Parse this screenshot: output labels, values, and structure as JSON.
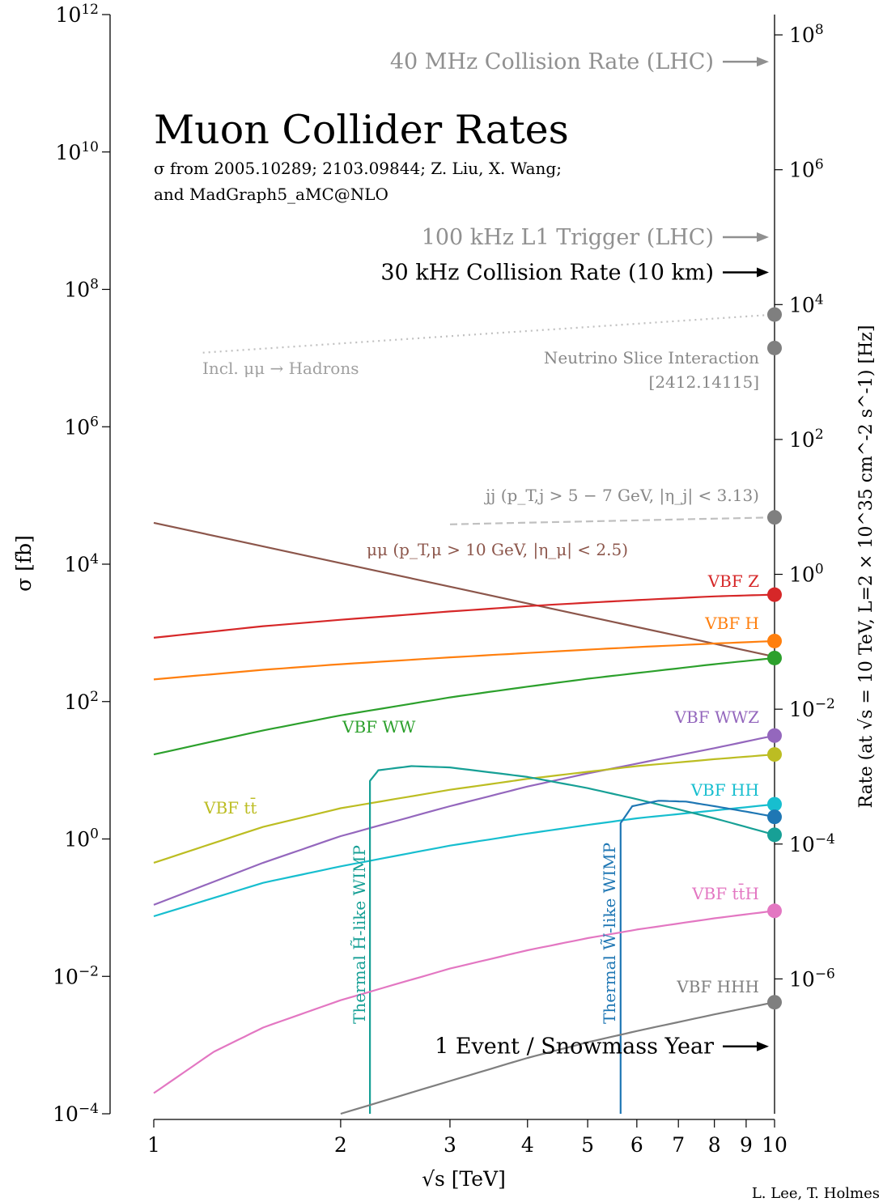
{
  "chart_data": {
    "type": "line",
    "title": "Muon Collider Rates",
    "subtitle_lines": [
      "σ from 2005.10289; 2103.09844; Z. Liu, X. Wang;",
      "and MadGraph5_aMC@NLO"
    ],
    "credit": "L. Lee, T. Holmes",
    "xlabel": "√s [TeV]",
    "ylabel": "σ [fb]",
    "ylabel_right": "Rate (at √s = 10 TeV, L=2 × 10^35 cm^-2 s^-1) [Hz]",
    "x_scale": "log",
    "y_scale": "log",
    "xlim": [
      1,
      10
    ],
    "ylim": [
      0.0001,
      1000000000000
    ],
    "right_ylim": [
      1e-08,
      200000000
    ],
    "x_ticks": [
      {
        "value": 1,
        "label": "1"
      },
      {
        "value": 2,
        "label": "2"
      },
      {
        "value": 3,
        "label": "3"
      },
      {
        "value": 4,
        "label": "4"
      },
      {
        "value": 5,
        "label": "5"
      },
      {
        "value": 6,
        "label": "6"
      },
      {
        "value": 7,
        "label": "7"
      },
      {
        "value": 8,
        "label": "8"
      },
      {
        "value": 9,
        "label": "9"
      },
      {
        "value": 10,
        "label": "10"
      }
    ],
    "y_ticks": [
      {
        "exp": -4,
        "base": "10",
        "sup": "−4"
      },
      {
        "exp": -2,
        "base": "10",
        "sup": "−2"
      },
      {
        "exp": 0,
        "base": "10",
        "sup": "0"
      },
      {
        "exp": 2,
        "base": "10",
        "sup": "2"
      },
      {
        "exp": 4,
        "base": "10",
        "sup": "4"
      },
      {
        "exp": 6,
        "base": "10",
        "sup": "6"
      },
      {
        "exp": 8,
        "base": "10",
        "sup": "8"
      },
      {
        "exp": 10,
        "base": "10",
        "sup": "10"
      },
      {
        "exp": 12,
        "base": "10",
        "sup": "12"
      }
    ],
    "right_y_ticks": [
      {
        "exp": -6,
        "base": "10",
        "sup": "−6"
      },
      {
        "exp": -4,
        "base": "10",
        "sup": "−4"
      },
      {
        "exp": -2,
        "base": "10",
        "sup": "−2"
      },
      {
        "exp": 0,
        "base": "10",
        "sup": "0"
      },
      {
        "exp": 2,
        "base": "10",
        "sup": "2"
      },
      {
        "exp": 4,
        "base": "10",
        "sup": "4"
      },
      {
        "exp": 6,
        "base": "10",
        "sup": "6"
      },
      {
        "exp": 8,
        "base": "10",
        "sup": "8"
      }
    ],
    "series": [
      {
        "name": "Incl. μμ → Hadrons",
        "color": "#c0c0c0",
        "style": "dotted",
        "x": [
          1.2,
          10
        ],
        "y": [
          12000000,
          43000000
        ]
      },
      {
        "name": "jj (p_T,j > 5 − 7 GeV, |η_j| < 3.13)",
        "color": "#c0c0c0",
        "style": "dashed",
        "x": [
          3,
          10
        ],
        "y": [
          38000,
          48000
        ]
      },
      {
        "name": "μμ (p_T,μ > 10 GeV, |η_μ| < 2.5)",
        "color": "#8c564b",
        "style": "solid",
        "x": [
          1,
          10
        ],
        "y": [
          40000,
          450
        ]
      },
      {
        "name": "VBF Z",
        "color": "#d62728",
        "style": "solid",
        "x": [
          1,
          1.5,
          2,
          3,
          4,
          5,
          6,
          8,
          10
        ],
        "y": [
          850,
          1250,
          1550,
          2050,
          2450,
          2750,
          3000,
          3400,
          3600
        ]
      },
      {
        "name": "VBF H",
        "color": "#ff7f0e",
        "style": "solid",
        "x": [
          1,
          1.5,
          2,
          3,
          4,
          5,
          6,
          8,
          10
        ],
        "y": [
          210,
          290,
          350,
          440,
          510,
          570,
          620,
          700,
          760
        ]
      },
      {
        "name": "VBF WW",
        "color": "#2ca02c",
        "style": "solid",
        "x": [
          1,
          1.5,
          2,
          3,
          4,
          5,
          6,
          8,
          10
        ],
        "y": [
          17,
          38,
          63,
          115,
          165,
          215,
          260,
          350,
          430
        ]
      },
      {
        "name": "VBF WWZ",
        "color": "#9467bd",
        "style": "solid",
        "x": [
          1,
          1.5,
          2,
          3,
          4,
          5,
          6,
          8,
          10
        ],
        "y": [
          0.11,
          0.45,
          1.1,
          3,
          5.8,
          9,
          12.5,
          21,
          32
        ]
      },
      {
        "name": "VBF tt̄",
        "color": "#bcbd22",
        "style": "solid",
        "x": [
          1,
          1.5,
          2,
          3,
          4,
          5,
          6,
          8,
          10
        ],
        "y": [
          0.45,
          1.5,
          2.8,
          5.2,
          7.5,
          9.5,
          11.5,
          14.5,
          17
        ]
      },
      {
        "name": "VBF HH",
        "color": "#17becf",
        "style": "solid",
        "x": [
          1,
          1.5,
          2,
          3,
          4,
          5,
          6,
          8,
          10
        ],
        "y": [
          0.075,
          0.23,
          0.4,
          0.8,
          1.2,
          1.6,
          2,
          2.6,
          3.2
        ]
      },
      {
        "name": "Thermal H̃-like WIMP",
        "color": "#17a096",
        "style": "solid",
        "x": [
          2.23,
          2.23,
          2.3,
          2.6,
          3,
          4,
          5,
          6,
          8,
          10
        ],
        "y": [
          0.0001,
          7,
          10,
          11.5,
          11,
          8,
          5.5,
          3.8,
          2,
          1.15
        ]
      },
      {
        "name": "Thermal W̃-like WIMP",
        "color": "#1f77b4",
        "style": "solid",
        "x": [
          5.65,
          5.65,
          5.9,
          6.5,
          7.2,
          8,
          9,
          10
        ],
        "y": [
          0.0001,
          1.7,
          3,
          3.6,
          3.5,
          3,
          2.5,
          2.1
        ]
      },
      {
        "name": "VBF tt̄H",
        "color": "#e377c2",
        "style": "solid",
        "x": [
          1,
          1.25,
          1.5,
          2,
          3,
          4,
          5,
          6,
          8,
          10
        ],
        "y": [
          0.0002,
          0.0008,
          0.0018,
          0.0045,
          0.013,
          0.024,
          0.036,
          0.048,
          0.07,
          0.09
        ]
      },
      {
        "name": "VBF HHH",
        "color": "#7f7f7f",
        "style": "solid",
        "x": [
          2,
          3,
          4,
          5,
          6,
          8,
          10
        ],
        "y": [
          0.0001,
          0.0003,
          0.00065,
          0.0011,
          0.0016,
          0.0028,
          0.0042
        ]
      }
    ],
    "series_labels": [
      {
        "text": "Incl. μμ → Hadrons",
        "color": "#a0a0a0"
      },
      {
        "text": "jj (p_T,j > 5 − 7 GeV, |η_j| < 3.13)",
        "color": "#888888"
      },
      {
        "text": "μμ (p_T,μ > 10 GeV, |η_μ| < 2.5)",
        "color": "#8c564b"
      },
      {
        "text": "VBF Z",
        "color": "#d62728"
      },
      {
        "text": "VBF H",
        "color": "#ff7f0e"
      },
      {
        "text": "VBF WW",
        "color": "#2ca02c"
      },
      {
        "text": "VBF WWZ",
        "color": "#9467bd"
      },
      {
        "text": "VBF tt̄",
        "color": "#bcbd22"
      },
      {
        "text": "VBF HH",
        "color": "#17becf"
      },
      {
        "text": "VBF tt̄H",
        "color": "#e377c2"
      },
      {
        "text": "VBF HHH",
        "color": "#7f7f7f"
      },
      {
        "text": "Thermal H̃-like WIMP",
        "color": "#17a096"
      },
      {
        "text": "Thermal W̃-like WIMP",
        "color": "#1f77b4"
      }
    ],
    "markers": [
      {
        "color": "#7f7f7f",
        "y": 43000000
      },
      {
        "color": "#7f7f7f",
        "y": 14000000
      },
      {
        "color": "#7f7f7f",
        "y": 48000
      },
      {
        "color": "#d62728",
        "y": 3600
      },
      {
        "color": "#ff7f0e",
        "y": 760
      },
      {
        "color": "#2ca02c",
        "y": 430
      },
      {
        "color": "#9467bd",
        "y": 32
      },
      {
        "color": "#bcbd22",
        "y": 17
      },
      {
        "color": "#17becf",
        "y": 3.2
      },
      {
        "color": "#1f77b4",
        "y": 2.1
      },
      {
        "color": "#17a096",
        "y": 1.15
      },
      {
        "color": "#e377c2",
        "y": 0.09
      },
      {
        "color": "#7f7f7f",
        "y": 0.0042
      }
    ],
    "annotations": [
      {
        "text": "40 MHz Collision Rate (LHC)",
        "color": "#909090",
        "rate_hz": 40000000
      },
      {
        "text": "100 kHz L1 Trigger (LHC)",
        "color": "#909090",
        "rate_hz": 100000
      },
      {
        "text": "30 kHz Collision Rate (10 km)",
        "color": "#000000",
        "rate_hz": 30000
      },
      {
        "text": "1 Event / Snowmass Year",
        "color": "#000000",
        "rate_hz": 1e-07
      }
    ],
    "neutrino_note": {
      "lines": [
        "Neutrino Slice Interaction",
        "[2412.14115]"
      ],
      "color": "#888888"
    }
  }
}
